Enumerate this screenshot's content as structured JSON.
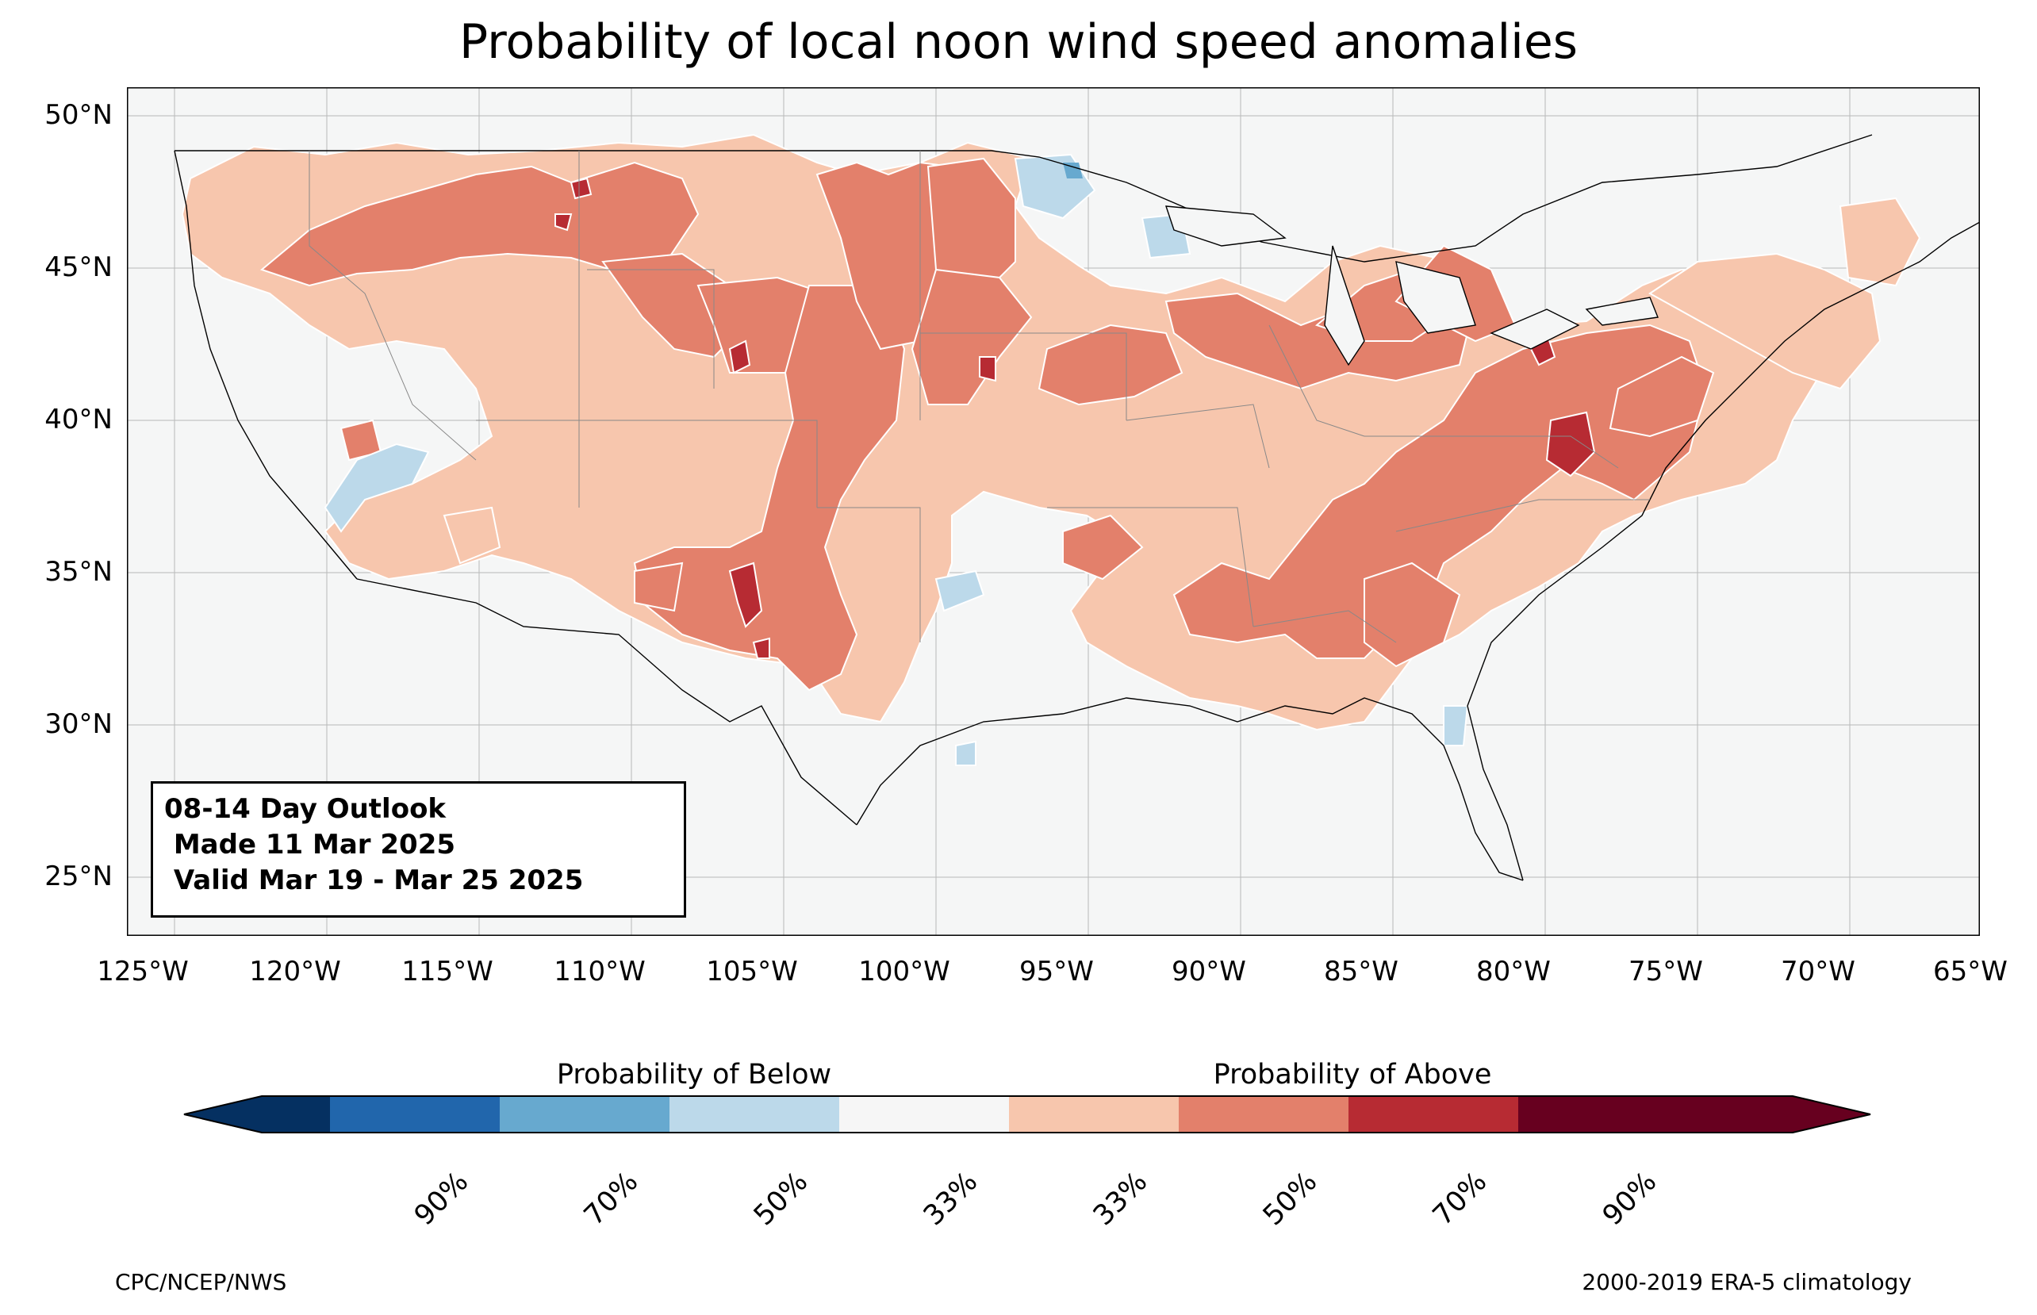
{
  "title": "Probability of local noon wind speed anomalies",
  "map": {
    "latitude_labels": [
      "50°N",
      "45°N",
      "40°N",
      "35°N",
      "30°N",
      "25°N"
    ],
    "longitude_labels": [
      "125°W",
      "120°W",
      "115°W",
      "110°W",
      "105°W",
      "100°W",
      "95°W",
      "90°W",
      "85°W",
      "80°W",
      "75°W",
      "70°W",
      "65°W"
    ],
    "extent": {
      "lon": [
        -125.5,
        -65
      ],
      "lat": [
        23,
        51
      ]
    },
    "ocean_color": "#f5f6f6",
    "outline_color": "#000000"
  },
  "info_box": {
    "line1": "08-14 Day Outlook",
    "line2": " Made 11 Mar 2025",
    "line3": " Valid Mar 19 - Mar 25 2025"
  },
  "colorbar": {
    "below_label": "Probability of Below",
    "above_label": "Probability of Above",
    "ticks": [
      "90%",
      "70%",
      "50%",
      "33%",
      "33%",
      "50%",
      "70%",
      "90%"
    ],
    "colors": [
      "#053061",
      "#2166ac",
      "#67a9cf",
      "#bcd9ea",
      "#f6f6f6",
      "#f7c6ad",
      "#e3806b",
      "#b72b33",
      "#67001f"
    ]
  },
  "footer": {
    "left": "CPC/NCEP/NWS",
    "right": "2000-2019 ERA-5 climatology"
  }
}
